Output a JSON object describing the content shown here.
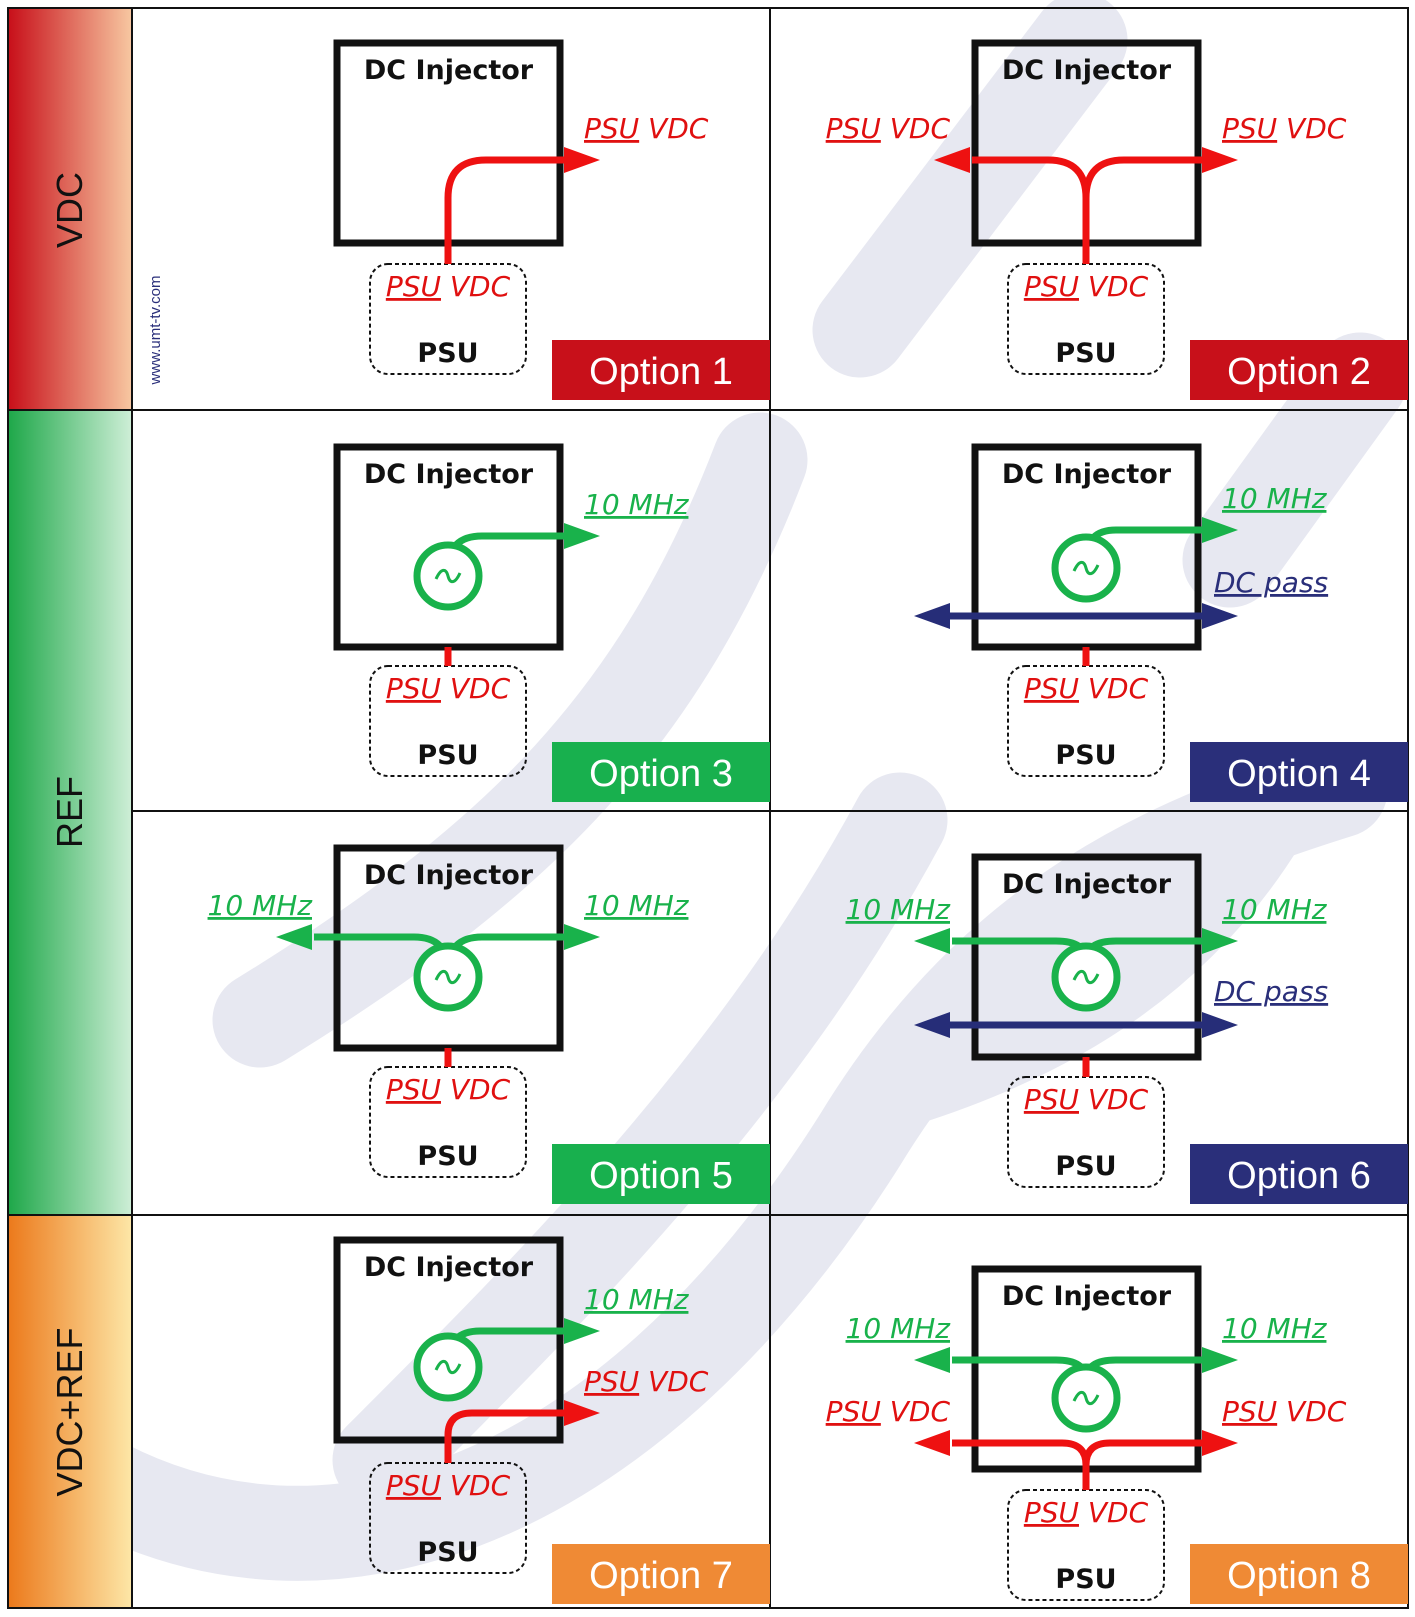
{
  "rows": [
    {
      "label": "VDC",
      "colors": [
        "#c8101a",
        "#f7c6a0"
      ]
    },
    {
      "label": "REF",
      "colors": [
        "#1fa84a",
        "#cdeed6"
      ]
    },
    {
      "label": "VDC+REF",
      "colors": [
        "#ec7a1c",
        "#fde6a6"
      ]
    }
  ],
  "watermark_url": "www.umt-tv.com",
  "box_title": "DC Injector",
  "psu_title": "PSU",
  "labels": {
    "psu_vdc_psu": "PSU",
    "psu_vdc_vdc": "VDC",
    "ten_mhz": "10 MHz",
    "dc_pass": "DC pass"
  },
  "options": [
    {
      "label": "Option 1",
      "color": "#c8101a"
    },
    {
      "label": "Option 2",
      "color": "#c8101a"
    },
    {
      "label": "Option 3",
      "color": "#18b04e"
    },
    {
      "label": "Option 4",
      "color": "#2a2f7a"
    },
    {
      "label": "Option 5",
      "color": "#18b04e"
    },
    {
      "label": "Option 6",
      "color": "#2a2f7a"
    },
    {
      "label": "Option 7",
      "color": "#ef8a35"
    },
    {
      "label": "Option 8",
      "color": "#ef8a35"
    }
  ],
  "colors": {
    "vdc_line": "#ee1111",
    "ref_line": "#19b24b",
    "dc_pass_line": "#262d78",
    "watermark": "#e6e7f0"
  }
}
